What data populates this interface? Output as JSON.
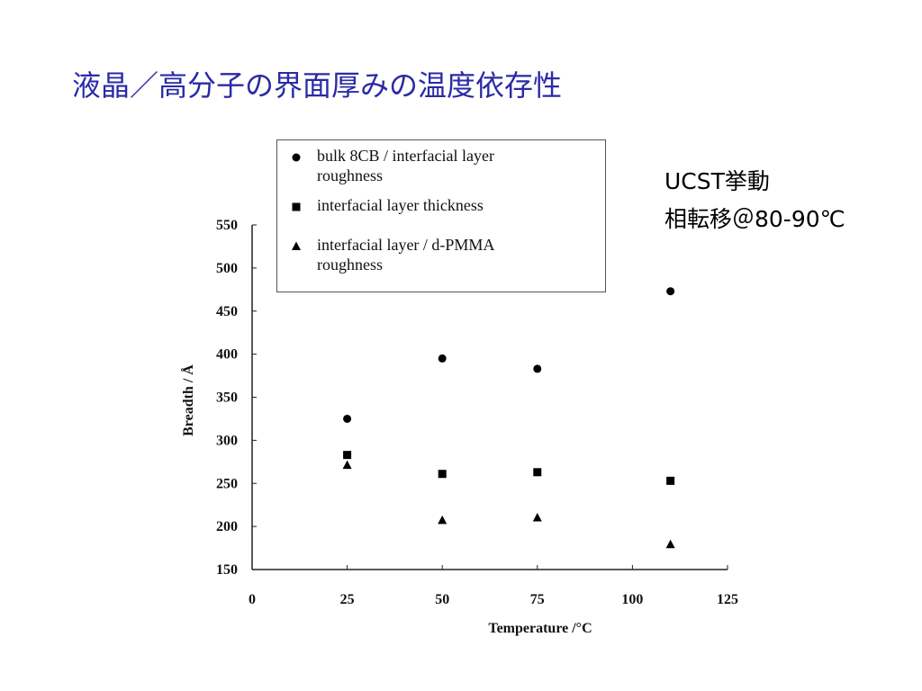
{
  "chart_data": {
    "type": "scatter",
    "title": "液晶／高分子の界面厚みの温度依存性",
    "annotations": [
      "UCST挙動",
      "相転移＠80-90℃"
    ],
    "x_label": "Temperature /°C",
    "y_label": "Breadth / Å",
    "x": [
      25,
      50,
      75,
      110
    ],
    "series": [
      {
        "name": "bulk 8CB / interfacial layer roughness",
        "color": "#000000",
        "marker": "circle",
        "values": [
          325,
          395,
          383,
          473
        ]
      },
      {
        "name": "interfacial layer thickness",
        "color": "#000000",
        "marker": "square",
        "values": [
          283,
          261,
          263,
          253
        ]
      },
      {
        "name": "interfacial layer / d-PMMA roughness",
        "color": "#000000",
        "marker": "triangle",
        "values": [
          271,
          207,
          210,
          179
        ]
      }
    ],
    "xlim": [
      0,
      125
    ],
    "xticks": [
      0,
      25,
      50,
      75,
      100,
      125
    ],
    "ylim": [
      150,
      550
    ],
    "yticks": [
      150,
      200,
      250,
      300,
      350,
      400,
      450,
      500,
      550
    ],
    "grid": false
  }
}
